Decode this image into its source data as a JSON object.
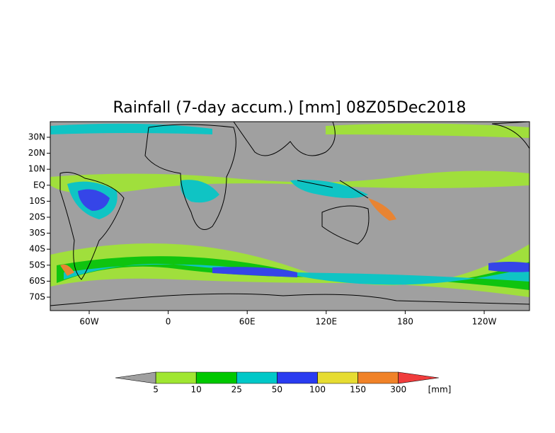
{
  "map": {
    "title": "Rainfall (7-day accum.) [mm] 08Z05Dec2018",
    "lat_labels": [
      "30N",
      "20N",
      "10N",
      "EQ",
      "10S",
      "20S",
      "30S",
      "40S",
      "50S",
      "60S",
      "70S"
    ],
    "lon_labels": [
      "60W",
      "0",
      "60E",
      "120E",
      "180",
      "120W"
    ],
    "colorbar": {
      "labels": [
        "5",
        "10",
        "25",
        "50",
        "100",
        "150",
        "300"
      ],
      "colors": [
        "#a0a0a0",
        "#a0e632",
        "#00c800",
        "#00c8c8",
        "#2a3cf0",
        "#e6dc32",
        "#f08228",
        "#f03c3c"
      ],
      "unit": "[mm]"
    }
  }
}
